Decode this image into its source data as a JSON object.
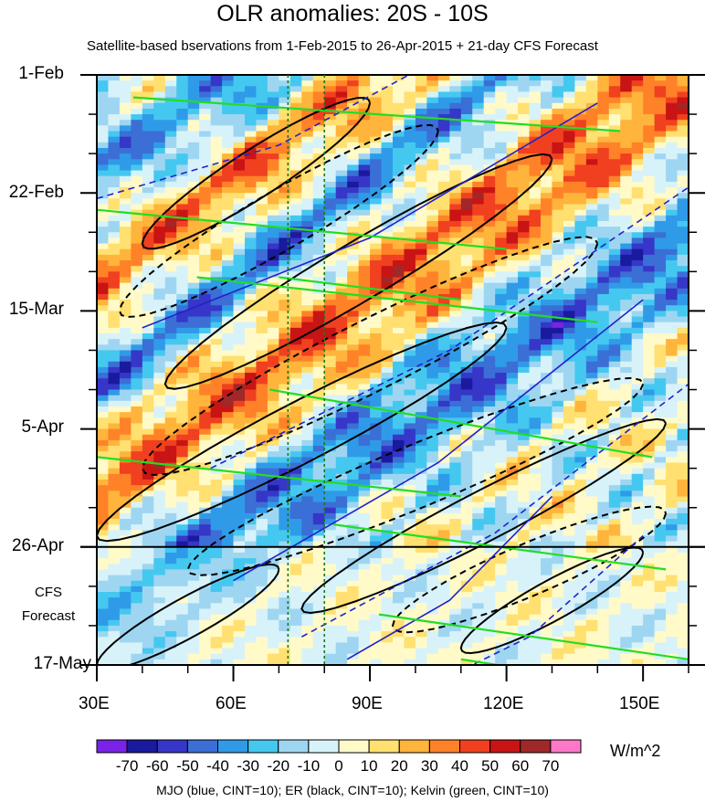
{
  "figure": {
    "title": "OLR anomalies: 20S - 10S",
    "subtitle": "Satellite-based bservations from 1-Feb-2015 to 26-Apr-2015 + 21-day CFS Forecast",
    "forecast_label_line1": "CFS",
    "forecast_label_line2": "Forecast",
    "colorbar_unit": "W/m^2",
    "footer": "MJO (blue, CINT=10); ER (black, CINT=10); Kelvin (green, CINT=10)"
  },
  "chart_data": {
    "type": "heatmap",
    "x_axis": {
      "label": "",
      "ticks": [
        "30E",
        "60E",
        "90E",
        "120E",
        "150E"
      ],
      "tick_values": [
        30,
        60,
        90,
        120,
        150
      ],
      "range": [
        30,
        160
      ]
    },
    "y_axis": {
      "label": "",
      "ticks": [
        "1-Feb",
        "22-Feb",
        "15-Mar",
        "5-Apr",
        "26-Apr",
        "17-May"
      ],
      "range": [
        "2015-02-01",
        "2015-05-17"
      ],
      "direction": "time increases downward"
    },
    "observation_end": "2015-04-26",
    "forecast_days": 21,
    "reference_longitudes": [
      72,
      80
    ],
    "colorbar": {
      "levels": [
        -70,
        -60,
        -50,
        -40,
        -30,
        -20,
        -10,
        0,
        10,
        20,
        30,
        40,
        50,
        60,
        70
      ],
      "colors": [
        "#7a22e6",
        "#1a1a9e",
        "#3636c8",
        "#3b6fd6",
        "#2f9be8",
        "#45c8f0",
        "#9ed6f2",
        "#d8f2fa",
        "#fffac8",
        "#ffe070",
        "#ffb43c",
        "#ff8228",
        "#f04020",
        "#c81414",
        "#a02828",
        "#ff78c8"
      ]
    },
    "overlays": [
      {
        "name": "MJO",
        "color": "blue",
        "cint": 10
      },
      {
        "name": "ER",
        "color": "black",
        "cint": 10
      },
      {
        "name": "Kelvin",
        "color": "green",
        "cint": 10
      }
    ]
  }
}
